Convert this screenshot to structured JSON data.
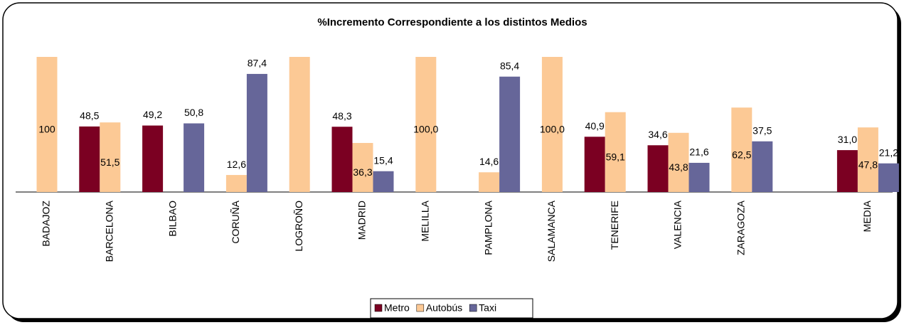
{
  "chart_data": {
    "type": "bar",
    "title": "%Incremento Correspondiente a los distintos Medios",
    "categories": [
      "BADAJOZ",
      "BARCELONA",
      "BILBAO",
      "CORUÑA",
      "LOGROÑO",
      "MADRID",
      "MELILLA",
      "PAMPLONA",
      "SALAMANCA",
      "TENERIFE",
      "VALENCIA",
      "ZARAGOZA",
      null,
      "MEDIA"
    ],
    "series": [
      {
        "name": "Metro",
        "color": "#7b0022",
        "values": [
          null,
          48.5,
          49.2,
          null,
          null,
          48.3,
          null,
          null,
          null,
          40.9,
          34.6,
          null,
          null,
          31.0
        ],
        "value_labels": [
          null,
          "48,5",
          "49,2",
          null,
          null,
          "48,3",
          null,
          null,
          null,
          "40,9",
          "34,6",
          null,
          null,
          "31,0"
        ]
      },
      {
        "name": "Autobús",
        "color": "#fcc995",
        "values": [
          100,
          51.5,
          null,
          12.6,
          100,
          36.3,
          100,
          14.6,
          100,
          59.1,
          43.8,
          62.5,
          null,
          47.8
        ],
        "value_labels": [
          "100",
          "51,5",
          null,
          "12,6",
          null,
          "36,3",
          "100,0",
          "14,6",
          "100,0",
          "59,1",
          "43,8",
          "62,5",
          null,
          "47,8"
        ]
      },
      {
        "name": "Taxi",
        "color": "#666699",
        "values": [
          null,
          null,
          50.8,
          87.4,
          null,
          15.4,
          null,
          85.4,
          null,
          null,
          21.6,
          37.5,
          null,
          21.2
        ],
        "value_labels": [
          null,
          null,
          "50,8",
          "87,4",
          null,
          "15,4",
          null,
          "85,4",
          null,
          null,
          "21,6",
          "37,5",
          null,
          "21,2"
        ]
      }
    ],
    "ylim": [
      0,
      100
    ],
    "legend": "bottom"
  }
}
